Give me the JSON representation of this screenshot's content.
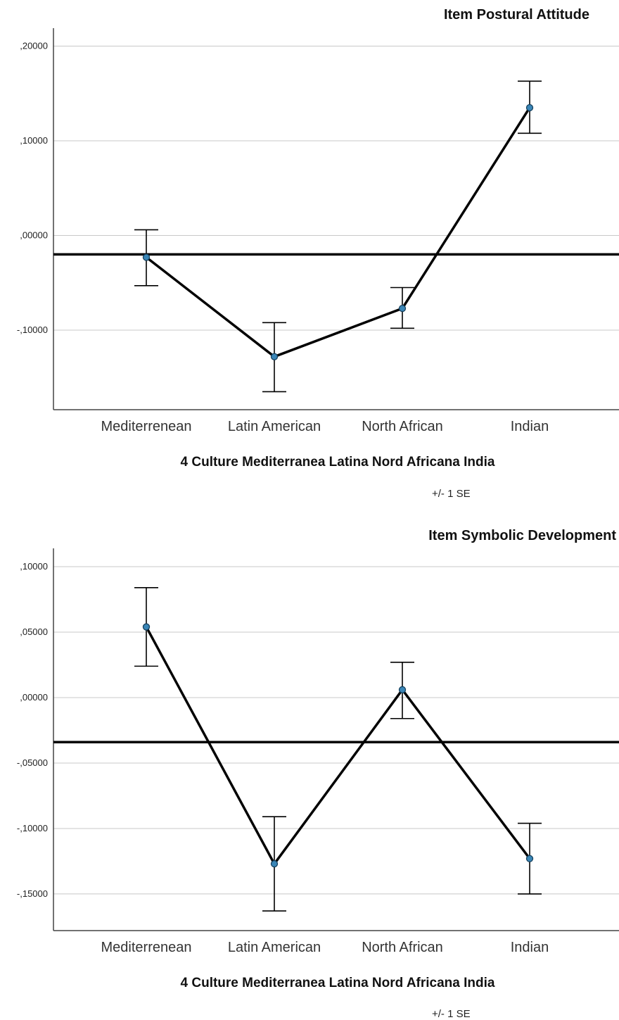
{
  "chart_data": [
    {
      "type": "line",
      "title": "Item Postural Attitude",
      "xlabel": "4 Culture Mediterranea Latina Nord Africana India",
      "ylabel": "",
      "footnote": "+/- 1 SE",
      "categories": [
        "Mediterrenean",
        "Latin American",
        "North African",
        "Indian"
      ],
      "values": [
        -0.023,
        -0.128,
        -0.077,
        0.135
      ],
      "error_upper": [
        0.006,
        -0.092,
        -0.055,
        0.163
      ],
      "error_lower": [
        -0.053,
        -0.165,
        -0.098,
        0.108
      ],
      "reference_line": -0.02,
      "yticks": [
        0.2,
        0.1,
        0.0,
        -0.1
      ],
      "ytick_labels": [
        ",20000",
        ",10000",
        ",00000",
        "-,10000"
      ],
      "ylim": [
        -0.184,
        0.219
      ],
      "grid": true
    },
    {
      "type": "line",
      "title": "Item Symbolic Development",
      "xlabel": "4 Culture Mediterranea Latina Nord Africana India",
      "ylabel": "",
      "footnote": "+/- 1 SE",
      "categories": [
        "Mediterrenean",
        "Latin American",
        "North African",
        "Indian"
      ],
      "values": [
        0.054,
        -0.127,
        0.006,
        -0.123
      ],
      "error_upper": [
        0.084,
        -0.091,
        0.027,
        -0.096
      ],
      "error_lower": [
        0.024,
        -0.163,
        -0.016,
        -0.15
      ],
      "reference_line": -0.034,
      "yticks": [
        0.1,
        0.05,
        0.0,
        -0.05,
        -0.1,
        -0.15
      ],
      "ytick_labels": [
        ",10000",
        ",05000",
        ",00000",
        "-,05000",
        "-,10000",
        "-,15000"
      ],
      "ylim": [
        -0.178,
        0.114
      ],
      "grid": true
    }
  ]
}
